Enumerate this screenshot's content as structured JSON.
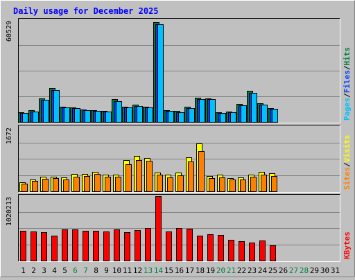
{
  "colors": {
    "hits": "#008040",
    "files": "#0040ff",
    "pages": "#00c0ff",
    "visits": "#ffff00",
    "sites": "#ff8000",
    "kbytes": "#ff0000",
    "title": "#0000ff",
    "weekend": "#008040",
    "weekday": "#000000",
    "panel": "#c0c0c0",
    "grid": "#808080"
  },
  "chart_data": {
    "type": "bar",
    "title": "Daily usage for December 2025",
    "days": [
      "1",
      "2",
      "3",
      "4",
      "5",
      "6",
      "7",
      "8",
      "9",
      "10",
      "11",
      "12",
      "13",
      "14",
      "15",
      "16",
      "17",
      "18",
      "19",
      "20",
      "21",
      "22",
      "23",
      "24",
      "25",
      "26",
      "27",
      "28",
      "29",
      "30",
      "31"
    ],
    "weekend_days": [
      "6",
      "7",
      "13",
      "14",
      "20",
      "21",
      "27",
      "28"
    ],
    "panels": [
      {
        "name": "hits-files-pages",
        "max_label": "60529",
        "ymax": 60529,
        "legend": [
          {
            "label": "Pages",
            "color_key": "pages"
          },
          {
            "label": "/",
            "color_key": "weekday"
          },
          {
            "label": "Files",
            "color_key": "files"
          },
          {
            "label": "/",
            "color_key": "weekday"
          },
          {
            "label": "Hits",
            "color_key": "hits"
          }
        ],
        "series": [
          {
            "key": "hits",
            "values": [
              5700,
              6800,
              14000,
              20000,
              9200,
              8600,
              7500,
              7100,
              6500,
              13400,
              9100,
              10100,
              9100,
              59000,
              7000,
              6400,
              9000,
              14300,
              14000,
              5700,
              6200,
              10500,
              18200,
              11200,
              8200
            ]
          },
          {
            "key": "files",
            "values": [
              5200,
              6300,
              12900,
              19000,
              8600,
              8100,
              7000,
              6600,
              6000,
              12400,
              8500,
              9500,
              8500,
              57500,
              6400,
              5900,
              8300,
              13300,
              13300,
              5200,
              5700,
              9800,
              17200,
              10400,
              7600
            ]
          },
          {
            "key": "pages",
            "values": [
              5200,
              6300,
              12900,
              19000,
              8600,
              8100,
              7000,
              6600,
              6000,
              12400,
              8500,
              9500,
              8500,
              57500,
              6400,
              5900,
              8300,
              13300,
              13300,
              5200,
              5700,
              9800,
              17200,
              10400,
              7600
            ]
          }
        ]
      },
      {
        "name": "visits-sites",
        "max_label": "1672",
        "ymax": 1672,
        "legend": [
          {
            "label": "Sites",
            "color_key": "sites"
          },
          {
            "label": "/",
            "color_key": "weekday"
          },
          {
            "label": "Visits",
            "color_key": "visits"
          }
        ],
        "series": [
          {
            "key": "visits",
            "values": [
              230,
              300,
              370,
              380,
              350,
              450,
              450,
              500,
              420,
              430,
              800,
              900,
              860,
              480,
              420,
              480,
              870,
              1220,
              400,
              430,
              340,
              350,
              420,
              490,
              460
            ]
          },
          {
            "key": "sites",
            "values": [
              190,
              260,
              320,
              340,
              300,
              380,
              390,
              440,
              370,
              380,
              700,
              800,
              780,
              420,
              360,
              410,
              760,
              1040,
              340,
              360,
              300,
              300,
              370,
              430,
              400
            ]
          }
        ]
      },
      {
        "name": "kbytes",
        "max_label": "1020213",
        "ymax": 1020213,
        "legend": [
          {
            "label": "KBytes",
            "color_key": "kbytes"
          }
        ],
        "series": [
          {
            "key": "kbytes",
            "values": [
              470000,
              460000,
              440000,
              390000,
              490000,
              490000,
              470000,
              470000,
              460000,
              490000,
              450000,
              480000,
              510000,
              1010000,
              460000,
              510000,
              500000,
              390000,
              410000,
              400000,
              330000,
              300000,
              280000,
              320000,
              240000
            ]
          }
        ]
      }
    ]
  }
}
